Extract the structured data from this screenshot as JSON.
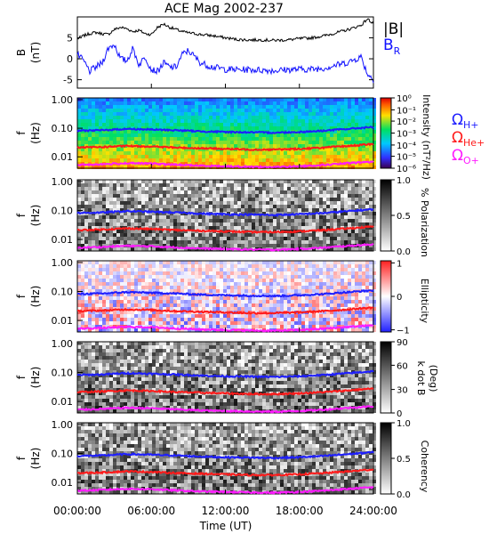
{
  "title": "ACE Mag 2002-237",
  "x_axis": {
    "label": "Time (UT)",
    "ticks": [
      "00:00:00",
      "06:00:00",
      "12:00:00",
      "18:00:00",
      "24:00:00"
    ],
    "range_hours": [
      0,
      24
    ]
  },
  "series_colors": {
    "B_total": "#000000",
    "B_R": "#1010ff",
    "H": "#1e1eff",
    "He": "#ff1a1a",
    "O": "#ff1aff"
  },
  "panels": [
    {
      "id": "mag",
      "ylabel": "B",
      "yunit": "(nT)",
      "ticks": [
        "5",
        "0",
        "-5"
      ],
      "legend": [
        "|B|",
        "B",
        "R"
      ]
    },
    {
      "id": "intensity",
      "ylabel": "f",
      "yunit": "(Hz)",
      "ticks": [
        "1.00",
        "0.10",
        "0.01"
      ],
      "cbar_label": "Intensity (nT²/Hz)",
      "cbar_ticks": [
        "10⁰",
        "10⁻¹",
        "10⁻²",
        "10⁻³",
        "10⁻⁴",
        "10⁻⁵",
        "10⁻⁶"
      ],
      "legend": [
        "Ω",
        "H+",
        "Ω",
        "He+",
        "Ω",
        "O+"
      ]
    },
    {
      "id": "polarization",
      "ylabel": "f",
      "yunit": "(Hz)",
      "ticks": [
        "1.00",
        "0.10",
        "0.01"
      ],
      "cbar_label": "% Polarization",
      "cbar_ticks": [
        "1.0",
        "0.5",
        "0.0"
      ]
    },
    {
      "id": "ellipticity",
      "ylabel": "f",
      "yunit": "(Hz)",
      "ticks": [
        "1.00",
        "0.10",
        "0.01"
      ],
      "cbar_label": "Ellipticity",
      "cbar_ticks": [
        "1",
        "0",
        "−1"
      ]
    },
    {
      "id": "kdotb",
      "ylabel": "f",
      "yunit": "(Hz)",
      "ticks": [
        "1.00",
        "0.10",
        "0.01"
      ],
      "cbar_label": "k dot B",
      "cbar_label2": "(Deg)",
      "cbar_ticks": [
        "90",
        "60",
        "30",
        "0"
      ]
    },
    {
      "id": "coherency",
      "ylabel": "f",
      "yunit": "(Hz)",
      "ticks": [
        "1.00",
        "0.10",
        "0.01"
      ],
      "cbar_label": "Coherency",
      "cbar_ticks": [
        "1.0",
        "0.5",
        "0.0"
      ]
    }
  ],
  "chart_data": [
    {
      "type": "line",
      "title": "ACE Mag 2002-237",
      "xlabel": "Time (UT)",
      "ylabel": "B (nT)",
      "ylim": [
        -7,
        10
      ],
      "x_unit": "hours UT",
      "series": [
        {
          "name": "|B|",
          "color": "#000000",
          "x": [
            0,
            0.5,
            1,
            1.5,
            2,
            2.5,
            3,
            3.5,
            4,
            4.5,
            5,
            5.5,
            6,
            6.5,
            7,
            7.5,
            8,
            8.5,
            9,
            10,
            11,
            12,
            13,
            14,
            15,
            16,
            17,
            18,
            19,
            20,
            21,
            22,
            23,
            23.5,
            24
          ],
          "values": [
            4.8,
            5.5,
            6.0,
            6.3,
            6.0,
            5.8,
            7.0,
            7.5,
            7.2,
            6.5,
            6.8,
            6.0,
            5.8,
            7.5,
            8.3,
            7.5,
            7.0,
            6.5,
            6.2,
            5.8,
            5.5,
            5.0,
            4.6,
            4.5,
            4.5,
            4.4,
            4.5,
            4.8,
            5.0,
            5.5,
            6.2,
            7.0,
            8.0,
            9.5,
            8.5
          ]
        },
        {
          "name": "B_R",
          "color": "#1010ff",
          "x": [
            0,
            0.5,
            1,
            1.5,
            2,
            2.5,
            3,
            3.5,
            4,
            4.5,
            5,
            5.5,
            6,
            6.5,
            7,
            7.5,
            8,
            8.5,
            9,
            10,
            11,
            12,
            13,
            14,
            15,
            16,
            17,
            18,
            19,
            20,
            21,
            22,
            23,
            23.5,
            24
          ],
          "values": [
            1.0,
            -0.5,
            -3.0,
            -2.0,
            -1.0,
            2.5,
            3.5,
            0.0,
            -0.5,
            2.5,
            -1.5,
            0.5,
            -2.5,
            -3.0,
            -1.0,
            -2.0,
            -2.0,
            1.0,
            2.0,
            -1.0,
            -2.0,
            -2.5,
            -2.6,
            -2.6,
            -2.7,
            -2.8,
            -2.6,
            -2.5,
            -2.5,
            -2.2,
            -1.5,
            -0.8,
            0.5,
            -3.5,
            -5.0
          ]
        }
      ]
    },
    {
      "type": "heatmap",
      "title": "Intensity",
      "ylabel": "f (Hz)",
      "ylim": [
        0.004,
        1.0
      ],
      "yscale": "log",
      "x_unit": "hours UT",
      "colorbar_range": [
        "1e-6",
        "1e0"
      ],
      "x": [
        0,
        2,
        4,
        6,
        8,
        10,
        12,
        14,
        16,
        18,
        20,
        22,
        24
      ],
      "series": [
        {
          "name": "Ω_H+",
          "color": "#1e1eff",
          "values": [
            0.082,
            0.085,
            0.095,
            0.09,
            0.085,
            0.078,
            0.074,
            0.072,
            0.07,
            0.074,
            0.082,
            0.095,
            0.11
          ]
        },
        {
          "name": "Ω_He+",
          "color": "#ff1a1a",
          "values": [
            0.021,
            0.022,
            0.024,
            0.023,
            0.021,
            0.02,
            0.019,
            0.018,
            0.018,
            0.019,
            0.021,
            0.024,
            0.028
          ]
        },
        {
          "name": "Ω_O+",
          "color": "#ff1aff",
          "values": [
            0.0052,
            0.0055,
            0.006,
            0.0058,
            0.0053,
            0.0049,
            0.0047,
            0.0045,
            0.0044,
            0.0047,
            0.0052,
            0.006,
            0.0068
          ]
        }
      ]
    },
    {
      "type": "heatmap",
      "title": "% Polarization",
      "ylabel": "f (Hz)",
      "yscale": "log",
      "colorbar_range": [
        0,
        1
      ]
    },
    {
      "type": "heatmap",
      "title": "Ellipticity",
      "ylabel": "f (Hz)",
      "yscale": "log",
      "colorbar_range": [
        -1,
        1
      ]
    },
    {
      "type": "heatmap",
      "title": "k dot B (Deg)",
      "ylabel": "f (Hz)",
      "yscale": "log",
      "colorbar_range": [
        0,
        90
      ]
    },
    {
      "type": "heatmap",
      "title": "Coherency",
      "ylabel": "f (Hz)",
      "yscale": "log",
      "colorbar_range": [
        0,
        1
      ]
    }
  ]
}
